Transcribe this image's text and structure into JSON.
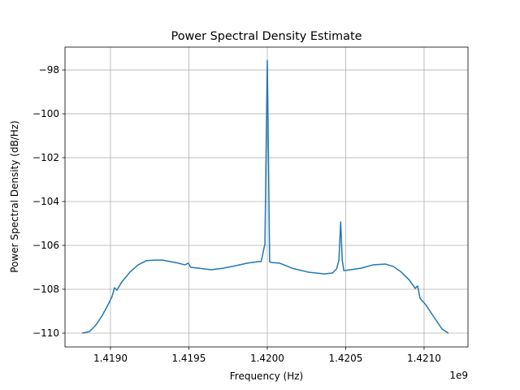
{
  "chart_data": {
    "type": "line",
    "title": "Power Spectral Density Estimate",
    "x_label": "Frequency (Hz)",
    "y_label": "Power Spectral Density (dB/Hz)",
    "x_offset_text": "1e9",
    "grid": true,
    "series": [
      {
        "color": "#1f77b4",
        "x": [
          1418819000,
          1418866000,
          1418907000,
          1418948000,
          1418990000,
          1419010000,
          1419026000,
          1419041000,
          1419072000,
          1419124000,
          1419176000,
          1419227000,
          1419279000,
          1419331000,
          1419382000,
          1419434000,
          1419475000,
          1419496000,
          1419512000,
          1419563000,
          1419641000,
          1419718000,
          1419796000,
          1419873000,
          1419941000,
          1419961000,
          1419985000,
          1419995000,
          1420000000,
          1420005000,
          1420015000,
          1420028000,
          1420080000,
          1420158000,
          1420261000,
          1420364000,
          1420416000,
          1420442000,
          1420457000,
          1420468000,
          1420478000,
          1420488000,
          1420530000,
          1420597000,
          1420674000,
          1420752000,
          1420804000,
          1420855000,
          1420907000,
          1420943000,
          1420959000,
          1420974000,
          1421010000,
          1421062000,
          1421114000,
          1421155000
        ],
        "values": [
          -110.0,
          -109.93,
          -109.63,
          -109.19,
          -108.63,
          -108.33,
          -107.93,
          -108.04,
          -107.67,
          -107.22,
          -106.89,
          -106.7,
          -106.67,
          -106.67,
          -106.74,
          -106.81,
          -106.89,
          -106.81,
          -107.0,
          -107.04,
          -107.11,
          -107.04,
          -106.93,
          -106.81,
          -106.74,
          -106.74,
          -105.93,
          -100.37,
          -97.56,
          -100.37,
          -106.74,
          -106.78,
          -106.81,
          -107.04,
          -107.22,
          -107.3,
          -107.26,
          -107.07,
          -106.67,
          -104.93,
          -106.67,
          -107.15,
          -107.11,
          -107.04,
          -106.89,
          -106.85,
          -106.96,
          -107.22,
          -107.59,
          -107.96,
          -107.85,
          -108.41,
          -108.7,
          -109.26,
          -109.81,
          -110.0
        ]
      }
    ],
    "xlim": [
      1418710000,
      1421280000
    ],
    "ylim": [
      -110.63,
      -96.96
    ],
    "xticks": [
      {
        "value": 1419000000,
        "label": "1.4190"
      },
      {
        "value": 1419500000,
        "label": "1.4195"
      },
      {
        "value": 1420000000,
        "label": "1.4200"
      },
      {
        "value": 1420500000,
        "label": "1.4205"
      },
      {
        "value": 1421000000,
        "label": "1.4210"
      }
    ],
    "yticks": [
      {
        "value": -110,
        "label": "−110"
      },
      {
        "value": -108,
        "label": "−108"
      },
      {
        "value": -106,
        "label": "−106"
      },
      {
        "value": -104,
        "label": "−104"
      },
      {
        "value": -102,
        "label": "−102"
      },
      {
        "value": -100,
        "label": "−100"
      },
      {
        "value": -98,
        "label": "−98"
      }
    ]
  }
}
